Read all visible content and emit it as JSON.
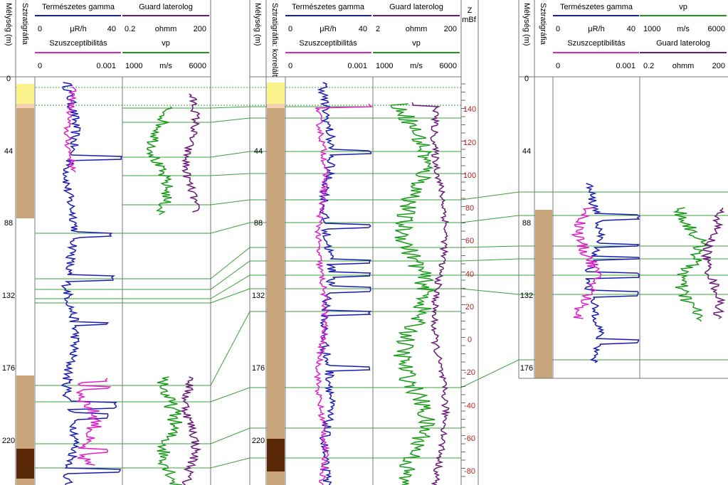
{
  "chart_data": {
    "type": "line",
    "colors": {
      "gamma": "#1a1ab4",
      "susc": "#e020c8",
      "guard": "#6a1a78",
      "vp": "#1a9a1a",
      "strat_yellow": "#fbf38c",
      "strat_brown": "#c9a57c",
      "strat_dark": "#5a2806",
      "strat_peach": "#f4d2b0",
      "correlation": "#3aa03a",
      "z_scale": "#b41e1e"
    },
    "wells": [
      {
        "depth_label": "Mélység (m)",
        "strat_label": "Sztratigráfia",
        "depth_ticks": [
          "0",
          "44",
          "88",
          "132",
          "176",
          "220"
        ],
        "headers": {
          "row1_left": {
            "name": "Természetes gamma",
            "min": "0",
            "unit": "μR/h",
            "max": "40"
          },
          "row1_right": {
            "name": "Guard laterolog",
            "min": "0.2",
            "unit": "ohmm",
            "max": "200"
          },
          "row2_left": {
            "name": "Szuszceptibilitás",
            "min": "0",
            "unit": "",
            "max": "0.001"
          },
          "row2_right": {
            "name": "vp",
            "min": "1000",
            "unit": "m/s",
            "max": "6000"
          }
        }
      },
      {
        "depth_label": "Mélység (m)",
        "strat_label": "Sztratigráfia: korrelált",
        "depth_ticks": [
          "44",
          "88",
          "132",
          "176",
          "220"
        ],
        "headers": {
          "row1_left": {
            "name": "Természetes gamma",
            "min": "0",
            "unit": "μR/h",
            "max": "40"
          },
          "row1_right": {
            "name": "Guard laterolog",
            "min": "2",
            "unit": "ohmm",
            "max": "200"
          },
          "row2_left": {
            "name": "Szuszceptibilitás",
            "min": "0",
            "unit": "",
            "max": "0.001"
          },
          "row2_right": {
            "name": "vp",
            "min": "1000",
            "unit": "m/s",
            "max": "6000"
          }
        }
      },
      {
        "depth_label": "Mélység (m)",
        "strat_label": "Sztratigráfia",
        "depth_ticks": [
          "0",
          "44",
          "88",
          "132",
          "176"
        ],
        "headers": {
          "row1_left": {
            "name": "Természetes gamma",
            "min": "0",
            "unit": "μR/h",
            "max": "40"
          },
          "row1_right": {
            "name": "vp",
            "min": "1000",
            "unit": "m/s",
            "max": "6000"
          },
          "row2_left": {
            "name": "Szuszceptibilitás",
            "min": "0",
            "unit": "",
            "max": "0.001"
          },
          "row2_right": {
            "name": "Guard laterolog",
            "min": "0.2",
            "unit": "ohmm",
            "max": "200"
          }
        }
      }
    ],
    "z_scale": {
      "title": "Z",
      "unit": "mBf",
      "ticks": [
        "140",
        "120",
        "100",
        "80",
        "60",
        "40",
        "20",
        "0",
        "-20",
        "-40",
        "-60",
        "-80"
      ]
    }
  }
}
